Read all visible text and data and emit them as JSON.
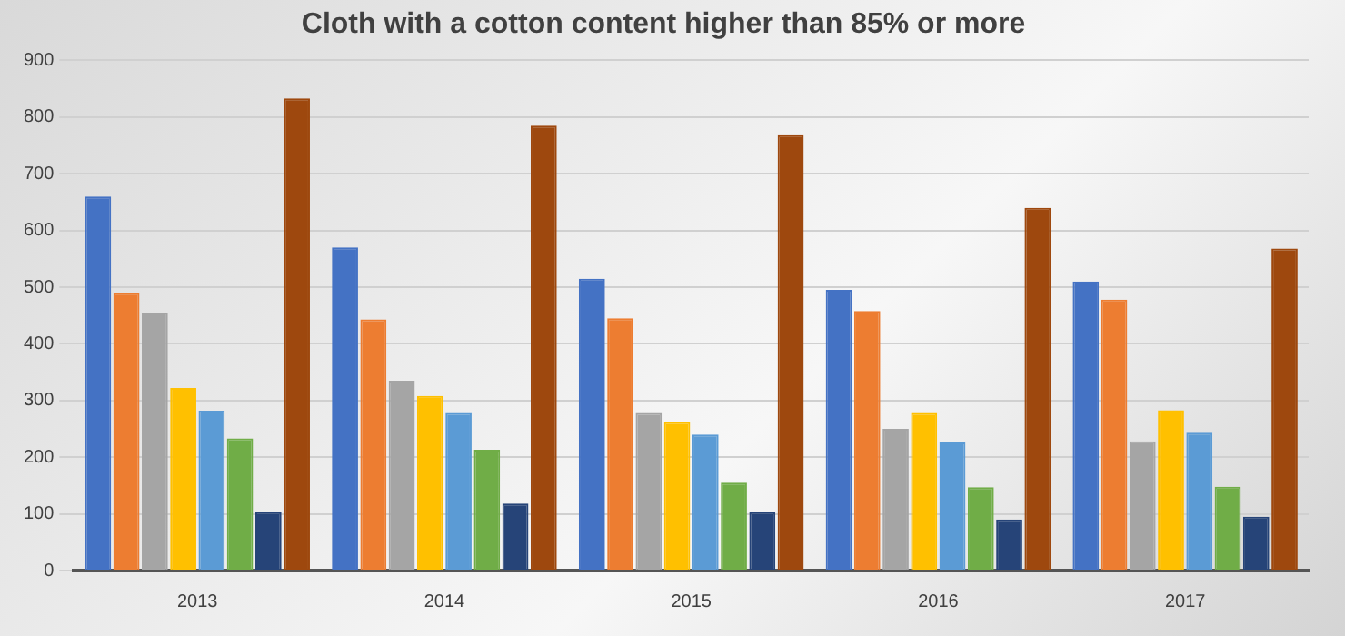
{
  "chart_data": {
    "type": "bar",
    "title": "Cloth with a cotton content higher than 85% or more",
    "categories": [
      "2013",
      "2014",
      "2015",
      "2016",
      "2017"
    ],
    "series": [
      {
        "color": "#4472c4",
        "values": [
          660,
          570,
          515,
          495,
          510
        ]
      },
      {
        "color": "#ed7d31",
        "values": [
          490,
          443,
          445,
          458,
          478
        ]
      },
      {
        "color": "#a5a5a5",
        "values": [
          455,
          335,
          278,
          250,
          228
        ]
      },
      {
        "color": "#ffc000",
        "values": [
          322,
          308,
          262,
          278,
          283
        ]
      },
      {
        "color": "#5b9bd5",
        "values": [
          282,
          278,
          240,
          226,
          243
        ]
      },
      {
        "color": "#70ad47",
        "values": [
          233,
          213,
          155,
          147,
          148
        ]
      },
      {
        "color": "#264478",
        "values": [
          103,
          118,
          103,
          90,
          95
        ]
      },
      {
        "color": "#9e480e",
        "values": [
          833,
          785,
          768,
          640,
          568
        ]
      }
    ],
    "ylim": [
      0,
      900
    ],
    "yticks": [
      0,
      100,
      200,
      300,
      400,
      500,
      600,
      700,
      800,
      900
    ],
    "grid": "y",
    "legend": false
  }
}
